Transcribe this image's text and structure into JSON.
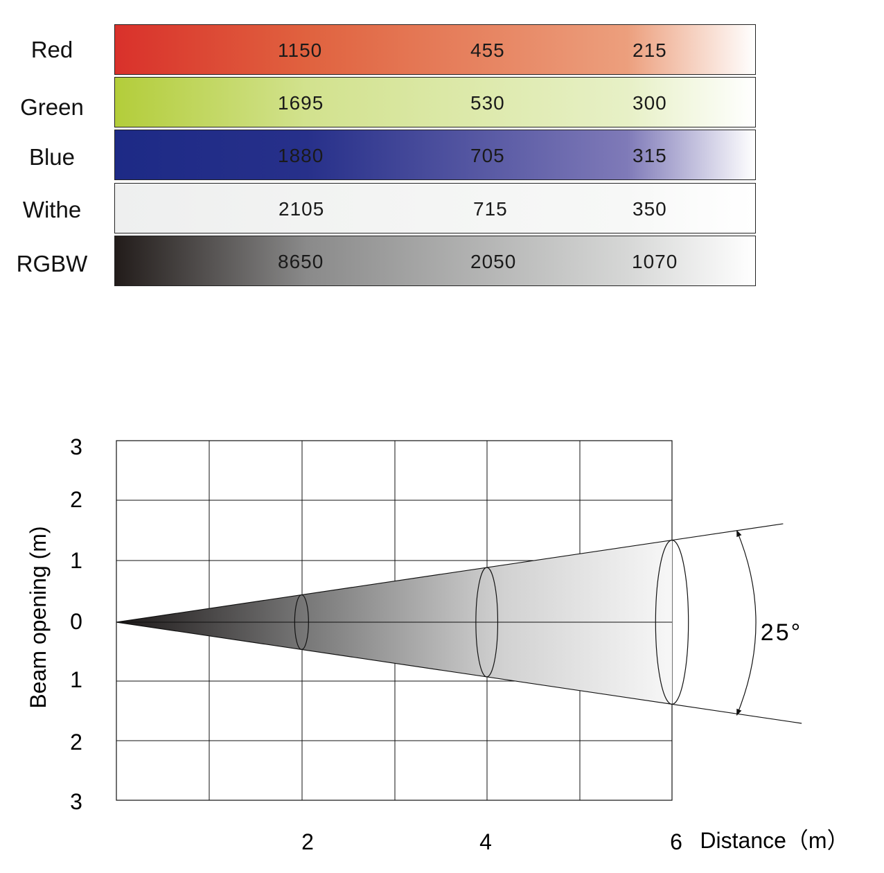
{
  "table": {
    "rows": [
      {
        "label": "Red",
        "values": [
          "1150",
          "455",
          "215"
        ],
        "gradient": [
          "#d9312b",
          "#e0623f",
          "#ec9f7d",
          "#ffffff"
        ],
        "text_color": "#1a1a1a"
      },
      {
        "label": "Green",
        "values": [
          "1695",
          "530",
          "300"
        ],
        "gradient": [
          "#b3cd3a",
          "#d2e28e",
          "#e7f0c6",
          "#ffffff"
        ],
        "text_color": "#1a1a1a"
      },
      {
        "label": "Blue",
        "values": [
          "1880",
          "705",
          "315"
        ],
        "gradient": [
          "#1d2a86",
          "#27308a",
          "#7f7ab8",
          "#ffffff"
        ],
        "text_color": "#1a1a1a"
      },
      {
        "label": "Withe",
        "values": [
          "2105",
          "715",
          "350"
        ],
        "gradient": [
          "#eeefef",
          "#f2f3f2",
          "#f7f8f7",
          "#ffffff"
        ],
        "text_color": "#1a1a1a"
      },
      {
        "label": "RGBW",
        "values": [
          "8650",
          "2050",
          "1070"
        ],
        "gradient": [
          "#221c1a",
          "#8a8a8a",
          "#d6d7d6",
          "#ffffff"
        ],
        "text_color": "#1a1a1a"
      }
    ]
  },
  "chart_data": {
    "type": "diagram",
    "ylabel": "Beam opening (m)",
    "xlabel": "Distance（m）",
    "y_ticks": [
      "3",
      "2",
      "1",
      "0",
      "1",
      "2",
      "3"
    ],
    "x_ticks": [
      "2",
      "4",
      "6"
    ],
    "x_range": [
      0,
      6
    ],
    "y_range": [
      -3,
      3
    ],
    "angle_label": "25°",
    "beam_angle_deg": 25,
    "cross_sections_at": [
      2,
      4,
      6
    ],
    "grid": true
  }
}
